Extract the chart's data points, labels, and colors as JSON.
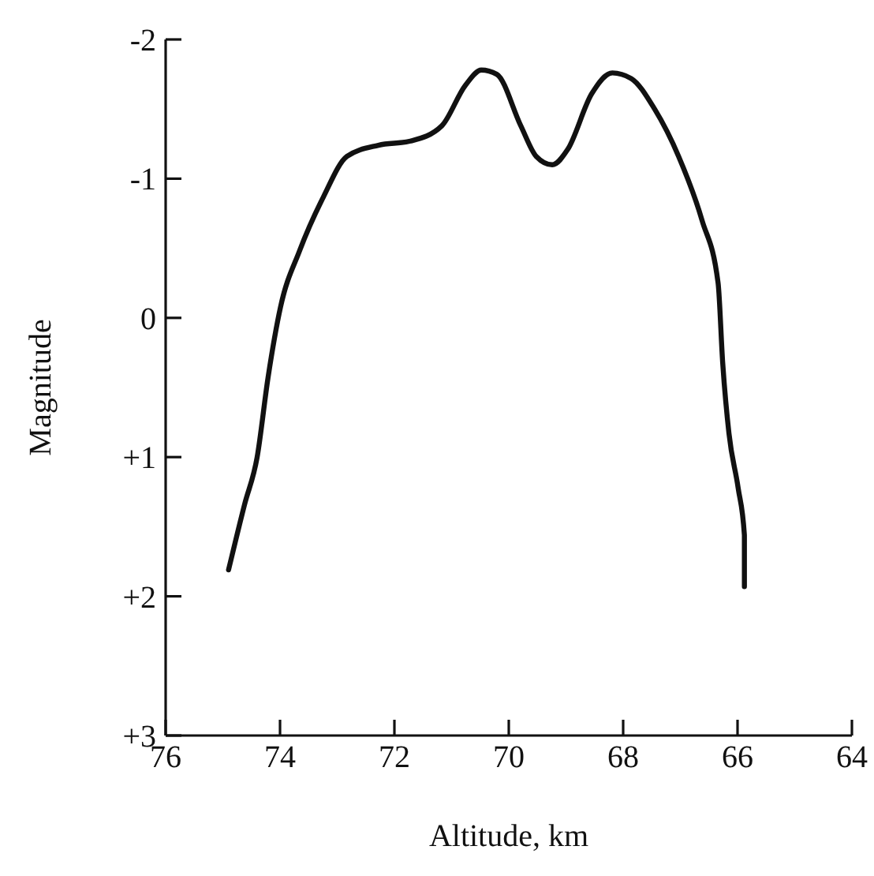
{
  "chart_data": {
    "type": "line",
    "xlabel": "Altitude,  km",
    "ylabel": "Magnitude",
    "xlim": [
      76,
      64
    ],
    "xticks": [
      76,
      74,
      72,
      70,
      68,
      66,
      64
    ],
    "ylim": [
      3,
      -2
    ],
    "yticks": [
      -2,
      -1,
      0,
      {
        "value": 1,
        "label": "+1"
      },
      {
        "value": 2,
        "label": "+2"
      },
      {
        "value": 3,
        "label": "+3"
      }
    ],
    "grid": false,
    "marker": "none",
    "line_style": "solid",
    "series": [
      {
        "color": "#111111",
        "x": [
          74.9,
          74.62,
          74.4,
          74.21,
          73.99,
          73.66,
          73.24,
          72.83,
          72.28,
          71.72,
          71.17,
          70.76,
          70.48,
          70.21,
          69.79,
          69.52,
          69.24,
          68.97,
          68.55,
          68.19,
          67.86,
          67.45,
          67.03,
          66.62,
          66.34,
          66.26,
          66.15,
          65.99,
          65.88,
          65.88
        ],
        "values": [
          1.81,
          1.34,
          1.0,
          0.43,
          -0.08,
          -0.48,
          -0.87,
          -1.16,
          -1.24,
          -1.27,
          -1.38,
          -1.67,
          -1.78,
          -1.75,
          -1.38,
          -1.16,
          -1.1,
          -1.21,
          -1.61,
          -1.76,
          -1.72,
          -1.5,
          -1.16,
          -0.7,
          -0.25,
          0.32,
          0.83,
          1.22,
          1.56,
          1.93
        ]
      }
    ]
  }
}
